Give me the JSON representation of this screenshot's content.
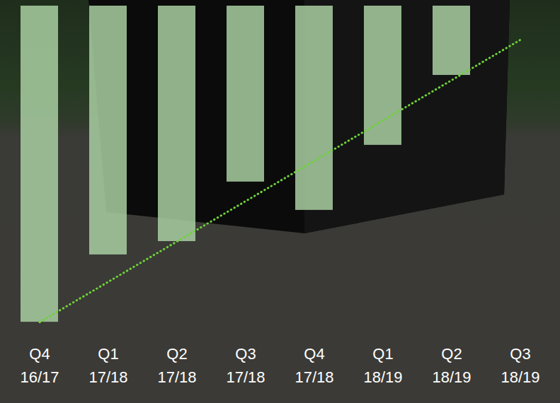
{
  "chart_data": {
    "type": "bar",
    "categories": [
      "Q4 16/17",
      "Q1 17/18",
      "Q2 17/18",
      "Q3 17/18",
      "Q4 17/18",
      "Q1 18/19",
      "Q2 18/19",
      "Q3 18/19"
    ],
    "series": [
      {
        "type": "bar",
        "color": "#a9cfa2",
        "values": [
          97.2,
          76.5,
          72.4,
          54.1,
          62.8,
          42.8,
          21.3,
          null
        ]
      },
      {
        "type": "line",
        "line_style": "dotted",
        "color": "#6fd13a",
        "values": [
          97.2,
          84.8,
          72.4,
          60.0,
          47.6,
          35.2,
          22.8,
          10.4
        ]
      }
    ],
    "ylim": [
      0,
      100
    ],
    "tick_labels": "x"
  }
}
